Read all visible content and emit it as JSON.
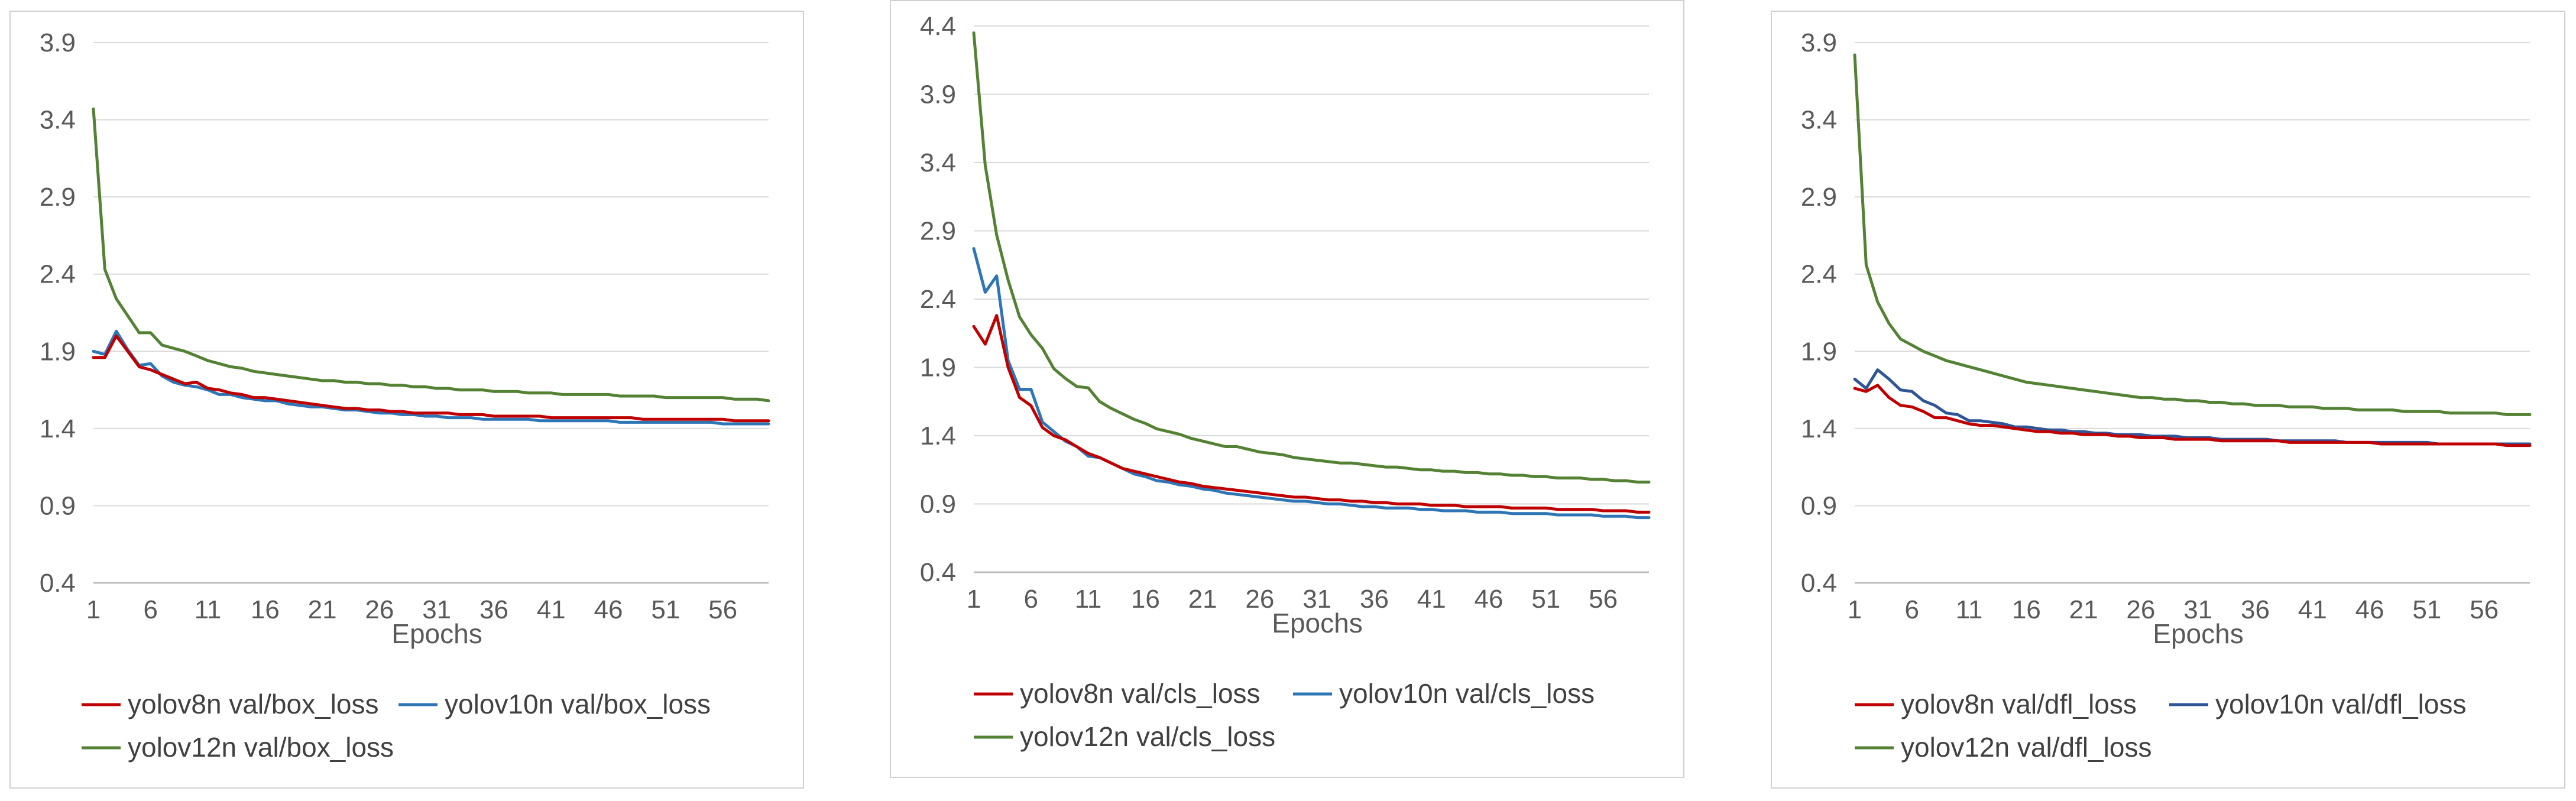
{
  "chart_data": [
    {
      "type": "line",
      "title": "",
      "xlabel": "Epochs",
      "ylabel": "",
      "ylim": [
        0.4,
        3.9
      ],
      "yticks": [
        0.4,
        0.9,
        1.4,
        1.9,
        2.4,
        2.9,
        3.4,
        3.9
      ],
      "xlim": [
        1,
        60
      ],
      "xticks": [
        1,
        6,
        11,
        16,
        21,
        26,
        31,
        36,
        41,
        46,
        51,
        56
      ],
      "grid": true,
      "legend_position": "bottom",
      "series": [
        {
          "name": "yolov8n val/box_loss",
          "color": "#c00000",
          "values": [
            1.86,
            1.86,
            2.0,
            1.9,
            1.8,
            1.78,
            1.75,
            1.72,
            1.69,
            1.7,
            1.66,
            1.65,
            1.63,
            1.62,
            1.6,
            1.6,
            1.59,
            1.58,
            1.57,
            1.56,
            1.55,
            1.54,
            1.53,
            1.53,
            1.52,
            1.52,
            1.51,
            1.51,
            1.5,
            1.5,
            1.5,
            1.5,
            1.49,
            1.49,
            1.49,
            1.48,
            1.48,
            1.48,
            1.48,
            1.48,
            1.47,
            1.47,
            1.47,
            1.47,
            1.47,
            1.47,
            1.47,
            1.47,
            1.46,
            1.46,
            1.46,
            1.46,
            1.46,
            1.46,
            1.46,
            1.46,
            1.45,
            1.45,
            1.45,
            1.45
          ]
        },
        {
          "name": "yolov10n val/box_loss",
          "color": "#2e75b6",
          "values": [
            1.9,
            1.88,
            2.03,
            1.91,
            1.81,
            1.82,
            1.74,
            1.7,
            1.68,
            1.67,
            1.65,
            1.62,
            1.62,
            1.6,
            1.59,
            1.58,
            1.58,
            1.56,
            1.55,
            1.54,
            1.54,
            1.53,
            1.52,
            1.52,
            1.51,
            1.5,
            1.5,
            1.49,
            1.49,
            1.48,
            1.48,
            1.47,
            1.47,
            1.47,
            1.46,
            1.46,
            1.46,
            1.46,
            1.46,
            1.45,
            1.45,
            1.45,
            1.45,
            1.45,
            1.45,
            1.45,
            1.44,
            1.44,
            1.44,
            1.44,
            1.44,
            1.44,
            1.44,
            1.44,
            1.44,
            1.43,
            1.43,
            1.43,
            1.43,
            1.43
          ]
        },
        {
          "name": "yolov12n val/box_loss",
          "color": "#548235",
          "values": [
            3.47,
            2.43,
            2.24,
            2.13,
            2.02,
            2.02,
            1.94,
            1.92,
            1.9,
            1.87,
            1.84,
            1.82,
            1.8,
            1.79,
            1.77,
            1.76,
            1.75,
            1.74,
            1.73,
            1.72,
            1.71,
            1.71,
            1.7,
            1.7,
            1.69,
            1.69,
            1.68,
            1.68,
            1.67,
            1.67,
            1.66,
            1.66,
            1.65,
            1.65,
            1.65,
            1.64,
            1.64,
            1.64,
            1.63,
            1.63,
            1.63,
            1.62,
            1.62,
            1.62,
            1.62,
            1.62,
            1.61,
            1.61,
            1.61,
            1.61,
            1.6,
            1.6,
            1.6,
            1.6,
            1.6,
            1.6,
            1.59,
            1.59,
            1.59,
            1.58
          ]
        }
      ]
    },
    {
      "type": "line",
      "title": "",
      "xlabel": "Epochs",
      "ylabel": "",
      "ylim": [
        0.4,
        4.4
      ],
      "yticks": [
        0.4,
        0.9,
        1.4,
        1.9,
        2.4,
        2.9,
        3.4,
        3.9,
        4.4
      ],
      "xlim": [
        1,
        60
      ],
      "xticks": [
        1,
        6,
        11,
        16,
        21,
        26,
        31,
        36,
        41,
        46,
        51,
        56
      ],
      "grid": true,
      "legend_position": "bottom",
      "series": [
        {
          "name": "yolov8n val/cls_loss",
          "color": "#c00000",
          "values": [
            2.2,
            2.07,
            2.28,
            1.9,
            1.68,
            1.62,
            1.46,
            1.4,
            1.37,
            1.32,
            1.27,
            1.24,
            1.2,
            1.16,
            1.14,
            1.12,
            1.1,
            1.08,
            1.06,
            1.05,
            1.03,
            1.02,
            1.01,
            1.0,
            0.99,
            0.98,
            0.97,
            0.96,
            0.95,
            0.95,
            0.94,
            0.93,
            0.93,
            0.92,
            0.92,
            0.91,
            0.91,
            0.9,
            0.9,
            0.9,
            0.89,
            0.89,
            0.89,
            0.88,
            0.88,
            0.88,
            0.88,
            0.87,
            0.87,
            0.87,
            0.87,
            0.86,
            0.86,
            0.86,
            0.86,
            0.85,
            0.85,
            0.85,
            0.84,
            0.84
          ]
        },
        {
          "name": "yolov10n val/cls_loss",
          "color": "#2e75b6",
          "values": [
            2.77,
            2.45,
            2.57,
            1.95,
            1.74,
            1.74,
            1.5,
            1.43,
            1.36,
            1.32,
            1.25,
            1.24,
            1.2,
            1.16,
            1.12,
            1.1,
            1.07,
            1.06,
            1.04,
            1.03,
            1.01,
            1.0,
            0.98,
            0.97,
            0.96,
            0.95,
            0.94,
            0.93,
            0.92,
            0.92,
            0.91,
            0.9,
            0.9,
            0.89,
            0.88,
            0.88,
            0.87,
            0.87,
            0.87,
            0.86,
            0.86,
            0.85,
            0.85,
            0.85,
            0.84,
            0.84,
            0.84,
            0.83,
            0.83,
            0.83,
            0.83,
            0.82,
            0.82,
            0.82,
            0.82,
            0.81,
            0.81,
            0.81,
            0.8,
            0.8
          ]
        },
        {
          "name": "yolov12n val/cls_loss",
          "color": "#548235",
          "values": [
            4.35,
            3.38,
            2.87,
            2.54,
            2.27,
            2.14,
            2.04,
            1.89,
            1.82,
            1.76,
            1.75,
            1.65,
            1.6,
            1.56,
            1.52,
            1.49,
            1.45,
            1.43,
            1.41,
            1.38,
            1.36,
            1.34,
            1.32,
            1.32,
            1.3,
            1.28,
            1.27,
            1.26,
            1.24,
            1.23,
            1.22,
            1.21,
            1.2,
            1.2,
            1.19,
            1.18,
            1.17,
            1.17,
            1.16,
            1.15,
            1.15,
            1.14,
            1.14,
            1.13,
            1.13,
            1.12,
            1.12,
            1.11,
            1.11,
            1.1,
            1.1,
            1.09,
            1.09,
            1.09,
            1.08,
            1.08,
            1.07,
            1.07,
            1.06,
            1.06
          ]
        }
      ]
    },
    {
      "type": "line",
      "title": "",
      "xlabel": "Epochs",
      "ylabel": "",
      "ylim": [
        0.4,
        3.9
      ],
      "yticks": [
        0.4,
        0.9,
        1.4,
        1.9,
        2.4,
        2.9,
        3.4,
        3.9
      ],
      "xlim": [
        1,
        60
      ],
      "xticks": [
        1,
        6,
        11,
        16,
        21,
        26,
        31,
        36,
        41,
        46,
        51,
        56
      ],
      "grid": true,
      "legend_position": "bottom",
      "series": [
        {
          "name": "yolov8n val/dfl_loss",
          "color": "#c00000",
          "values": [
            1.66,
            1.64,
            1.68,
            1.6,
            1.55,
            1.54,
            1.51,
            1.47,
            1.47,
            1.45,
            1.43,
            1.42,
            1.42,
            1.41,
            1.4,
            1.39,
            1.38,
            1.38,
            1.37,
            1.37,
            1.36,
            1.36,
            1.36,
            1.35,
            1.35,
            1.34,
            1.34,
            1.34,
            1.33,
            1.33,
            1.33,
            1.33,
            1.32,
            1.32,
            1.32,
            1.32,
            1.32,
            1.32,
            1.31,
            1.31,
            1.31,
            1.31,
            1.31,
            1.31,
            1.31,
            1.31,
            1.3,
            1.3,
            1.3,
            1.3,
            1.3,
            1.3,
            1.3,
            1.3,
            1.3,
            1.3,
            1.3,
            1.29,
            1.29,
            1.29
          ]
        },
        {
          "name": "yolov10n val/dfl_loss",
          "color": "#2f5597",
          "values": [
            1.72,
            1.66,
            1.78,
            1.72,
            1.65,
            1.64,
            1.58,
            1.55,
            1.5,
            1.49,
            1.45,
            1.45,
            1.44,
            1.43,
            1.41,
            1.41,
            1.4,
            1.39,
            1.39,
            1.38,
            1.38,
            1.37,
            1.37,
            1.36,
            1.36,
            1.36,
            1.35,
            1.35,
            1.35,
            1.34,
            1.34,
            1.34,
            1.33,
            1.33,
            1.33,
            1.33,
            1.33,
            1.32,
            1.32,
            1.32,
            1.32,
            1.32,
            1.32,
            1.31,
            1.31,
            1.31,
            1.31,
            1.31,
            1.31,
            1.31,
            1.31,
            1.3,
            1.3,
            1.3,
            1.3,
            1.3,
            1.3,
            1.3,
            1.3,
            1.3
          ]
        },
        {
          "name": "yolov12n val/dfl_loss",
          "color": "#548235",
          "values": [
            3.82,
            2.46,
            2.22,
            2.08,
            1.98,
            1.94,
            1.9,
            1.87,
            1.84,
            1.82,
            1.8,
            1.78,
            1.76,
            1.74,
            1.72,
            1.7,
            1.69,
            1.68,
            1.67,
            1.66,
            1.65,
            1.64,
            1.63,
            1.62,
            1.61,
            1.6,
            1.6,
            1.59,
            1.59,
            1.58,
            1.58,
            1.57,
            1.57,
            1.56,
            1.56,
            1.55,
            1.55,
            1.55,
            1.54,
            1.54,
            1.54,
            1.53,
            1.53,
            1.53,
            1.52,
            1.52,
            1.52,
            1.52,
            1.51,
            1.51,
            1.51,
            1.51,
            1.5,
            1.5,
            1.5,
            1.5,
            1.5,
            1.49,
            1.49,
            1.49
          ]
        }
      ]
    }
  ]
}
